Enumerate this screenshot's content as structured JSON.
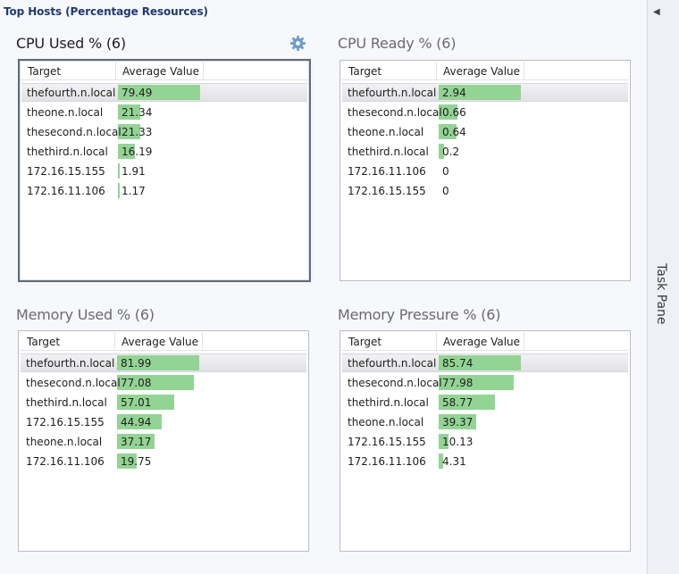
{
  "page": {
    "title": "Top Hosts (Percentage Resources)"
  },
  "task_pane": {
    "label": "Task Pane",
    "collapse_icon": "chevron-left-icon"
  },
  "colors": {
    "bar": "#93d494",
    "title_blue": "#1f3a6e"
  },
  "panels": {
    "cpu_used": {
      "title": "CPU Used % (6)",
      "settings_icon": "gear-icon",
      "col_target": "Target",
      "col_avg": "Average Value",
      "rows": [
        {
          "target": "thefourth.n.local",
          "value": "79.49"
        },
        {
          "target": "theone.n.local",
          "value": "21.34"
        },
        {
          "target": "thesecond.n.local",
          "value": "21.33"
        },
        {
          "target": "thethird.n.local",
          "value": "16.19"
        },
        {
          "target": "172.16.15.155",
          "value": "1.91"
        },
        {
          "target": "172.16.11.106",
          "value": "1.17"
        }
      ]
    },
    "cpu_ready": {
      "title": "CPU Ready % (6)",
      "col_target": "Target",
      "col_avg": "Average Value",
      "rows": [
        {
          "target": "thefourth.n.local",
          "value": "2.94"
        },
        {
          "target": "thesecond.n.local",
          "value": "0.66"
        },
        {
          "target": "theone.n.local",
          "value": "0.64"
        },
        {
          "target": "thethird.n.local",
          "value": "0.2"
        },
        {
          "target": "172.16.11.106",
          "value": "0"
        },
        {
          "target": "172.16.15.155",
          "value": "0"
        }
      ]
    },
    "mem_used": {
      "title": "Memory Used % (6)",
      "col_target": "Target",
      "col_avg": "Average Value",
      "rows": [
        {
          "target": "thefourth.n.local",
          "value": "81.99"
        },
        {
          "target": "thesecond.n.local",
          "value": "77.08"
        },
        {
          "target": "thethird.n.local",
          "value": "57.01"
        },
        {
          "target": "172.16.15.155",
          "value": "44.94"
        },
        {
          "target": "theone.n.local",
          "value": "37.17"
        },
        {
          "target": "172.16.11.106",
          "value": "19.75"
        }
      ]
    },
    "mem_pressure": {
      "title": "Memory Pressure % (6)",
      "col_target": "Target",
      "col_avg": "Average Value",
      "rows": [
        {
          "target": "thefourth.n.local",
          "value": "85.74"
        },
        {
          "target": "thesecond.n.local",
          "value": "77.98"
        },
        {
          "target": "thethird.n.local",
          "value": "58.77"
        },
        {
          "target": "theone.n.local",
          "value": "39.37"
        },
        {
          "target": "172.16.15.155",
          "value": "10.13"
        },
        {
          "target": "172.16.11.106",
          "value": "4.31"
        }
      ]
    }
  }
}
